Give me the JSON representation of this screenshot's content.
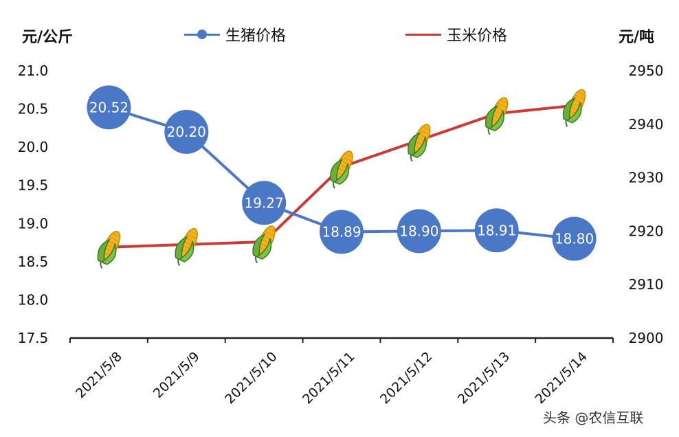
{
  "units": {
    "left": "元/公斤",
    "right": "元/吨"
  },
  "watermark": "头条 @农信互联",
  "colors": {
    "pig": "#4a78c6",
    "corn": "#cc3b33",
    "axis": "#222222"
  },
  "chart_data": {
    "type": "line",
    "categories": [
      "2021/5/8",
      "2021/5/9",
      "2021/5/10",
      "2021/5/11",
      "2021/5/12",
      "2021/5/13",
      "2021/5/14"
    ],
    "y_left": {
      "ticks": [
        "17.5",
        "18.0",
        "18.5",
        "19.0",
        "19.5",
        "20.0",
        "20.5",
        "21.0"
      ],
      "range": [
        17.5,
        21.0
      ]
    },
    "y_right": {
      "ticks": [
        "2900",
        "2910",
        "2920",
        "2930",
        "2940",
        "2950"
      ],
      "range": [
        2900,
        2950
      ]
    },
    "series": [
      {
        "name": "生猪价格",
        "axis": "left",
        "marker": "circle-with-label",
        "color": "#4a78c6",
        "values": [
          20.52,
          20.2,
          19.27,
          18.89,
          18.9,
          18.91,
          18.8
        ],
        "labels": [
          "20.52",
          "20.20",
          "19.27",
          "18.89",
          "18.90",
          "18.91",
          "18.80"
        ]
      },
      {
        "name": "玉米价格",
        "axis": "right",
        "marker": "corn-icon",
        "color": "#cc3b33",
        "values": [
          2917,
          2917.5,
          2918,
          2932,
          2937,
          2942,
          2943.5
        ]
      }
    ],
    "grid": false,
    "legend": "top-center"
  }
}
